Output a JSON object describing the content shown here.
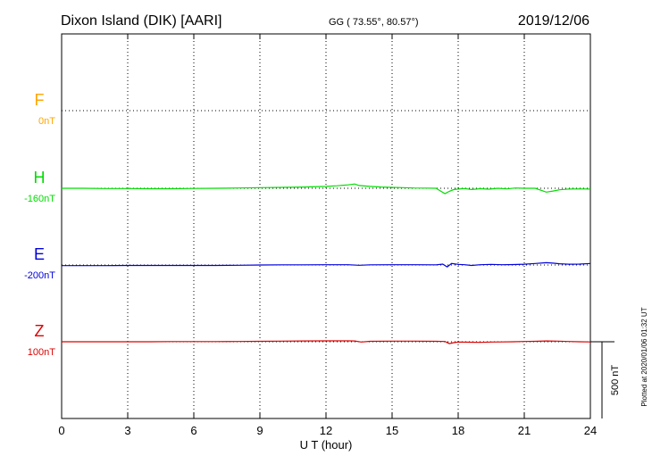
{
  "header": {
    "station": "Dixon Island (DIK)  [AARI]",
    "coords": "GG ( 73.55°,  80.57°)",
    "date": "2019/12/06"
  },
  "plotted_note": "Plotted at 2020/01/06 01:32 UT",
  "scale_label": "500 nT",
  "chart_data": {
    "type": "line",
    "title": "Dixon Island (DIK)  [AARI]",
    "xlabel": "U T (hour)",
    "ylabel": "",
    "xlim": [
      0,
      24
    ],
    "x_ticks": [
      0,
      3,
      6,
      9,
      12,
      15,
      18,
      21,
      24
    ],
    "x_tick_labels": [
      "0",
      "3",
      "6",
      "9",
      "12",
      "15",
      "18",
      "21",
      "24"
    ],
    "grid": true,
    "panel_scale_nT": 500,
    "series": [
      {
        "name": "F",
        "baseline_label": "0nT",
        "color": "#FFA500",
        "x": [],
        "y": []
      },
      {
        "name": "H",
        "baseline_label": "-160nT",
        "color": "#00DD00",
        "x": [
          0,
          1,
          2,
          3,
          4,
          5,
          6,
          7,
          8,
          9,
          10,
          11,
          12,
          12.5,
          13,
          13.3,
          13.5,
          14,
          14.5,
          15,
          15.5,
          16,
          16.5,
          17,
          17.2,
          17.4,
          17.6,
          17.8,
          18,
          18.3,
          18.6,
          19,
          19.4,
          19.8,
          20.2,
          20.6,
          21,
          21.5,
          22,
          22.3,
          22.6,
          23,
          23.5,
          24
        ],
        "y": [
          0,
          0,
          -2,
          -2,
          -3,
          -3,
          -1,
          0,
          2,
          4,
          6,
          8,
          12,
          16,
          22,
          28,
          18,
          12,
          8,
          6,
          4,
          2,
          1,
          0,
          -18,
          -35,
          -20,
          -8,
          -5,
          -2,
          -8,
          -3,
          -6,
          0,
          -4,
          2,
          0,
          0,
          -25,
          -18,
          -10,
          -5,
          -4,
          -5
        ]
      },
      {
        "name": "E",
        "baseline_label": "-200nT",
        "color": "#0000DD",
        "x": [
          0,
          1,
          2,
          3,
          4,
          5,
          6,
          7,
          8,
          9,
          10,
          11,
          12,
          13,
          13.5,
          14,
          15,
          16,
          17,
          17.3,
          17.5,
          17.7,
          18,
          18.3,
          18.6,
          19,
          19.5,
          20,
          20.5,
          21,
          21.5,
          22,
          22.3,
          22.6,
          23,
          23.5,
          24
        ],
        "y": [
          -4,
          -4,
          -4,
          -3,
          -3,
          -3,
          -3,
          -3,
          -2,
          0,
          1,
          1,
          2,
          2,
          -2,
          1,
          2,
          2,
          1,
          6,
          -12,
          10,
          4,
          2,
          -3,
          2,
          4,
          2,
          3,
          5,
          10,
          15,
          12,
          8,
          5,
          6,
          10
        ]
      },
      {
        "name": "Z",
        "baseline_label": "100nT",
        "color": "#DD0000",
        "x": [
          0,
          1,
          2,
          3,
          4,
          5,
          6,
          7,
          8,
          9,
          10,
          11,
          12,
          13,
          13.3,
          13.6,
          14,
          15,
          16,
          17,
          17.4,
          17.6,
          17.8,
          18,
          18.5,
          19,
          19.5,
          20,
          20.5,
          21,
          21.5,
          22,
          22.5,
          23,
          23.5,
          24
        ],
        "y": [
          0,
          0,
          0,
          0,
          0,
          1,
          1,
          1,
          2,
          3,
          4,
          5,
          6,
          6,
          5,
          -2,
          3,
          4,
          4,
          3,
          2,
          -12,
          -6,
          -2,
          -3,
          -4,
          -2,
          -1,
          0,
          2,
          3,
          5,
          4,
          2,
          0,
          -1
        ]
      }
    ]
  }
}
